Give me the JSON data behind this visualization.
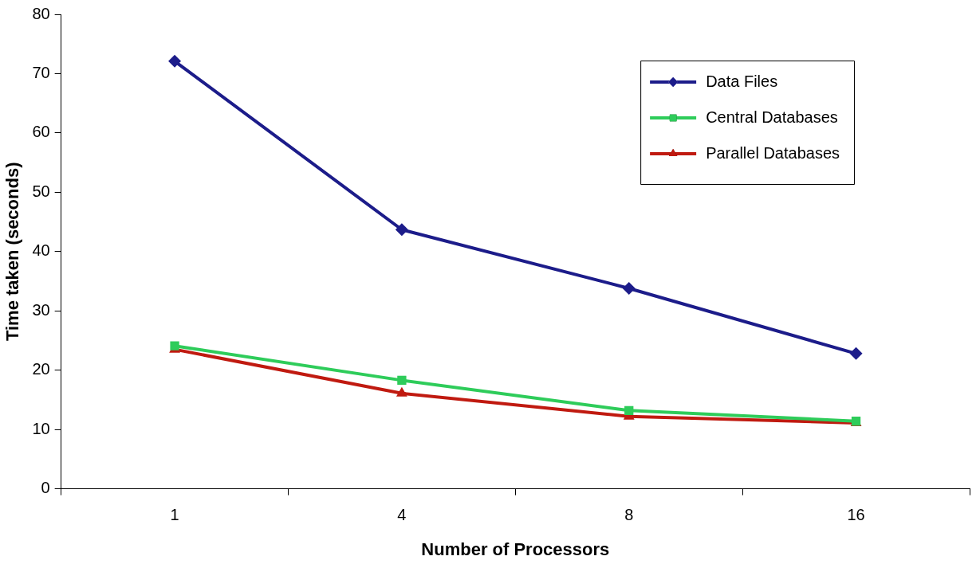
{
  "chart_data": {
    "type": "line",
    "xlabel": "Number of Processors",
    "ylabel": "Time taken (seconds)",
    "categories": [
      "1",
      "4",
      "8",
      "16"
    ],
    "series": [
      {
        "name": "Data Files",
        "color": "#1c1c8a",
        "marker": "diamond",
        "values": [
          72.1,
          43.7,
          33.8,
          22.8
        ]
      },
      {
        "name": "Central Databases",
        "color": "#2ecc5a",
        "marker": "square",
        "values": [
          24.1,
          18.3,
          13.2,
          11.4
        ]
      },
      {
        "name": "Parallel Databases",
        "color": "#c01a10",
        "marker": "triangle",
        "values": [
          23.5,
          16.1,
          12.2,
          11.1
        ]
      }
    ],
    "ylim": [
      0,
      80
    ],
    "yticks": [
      0,
      10,
      20,
      30,
      40,
      50,
      60,
      70,
      80
    ],
    "grid": false,
    "legend": "top right",
    "line_style": "solid"
  }
}
